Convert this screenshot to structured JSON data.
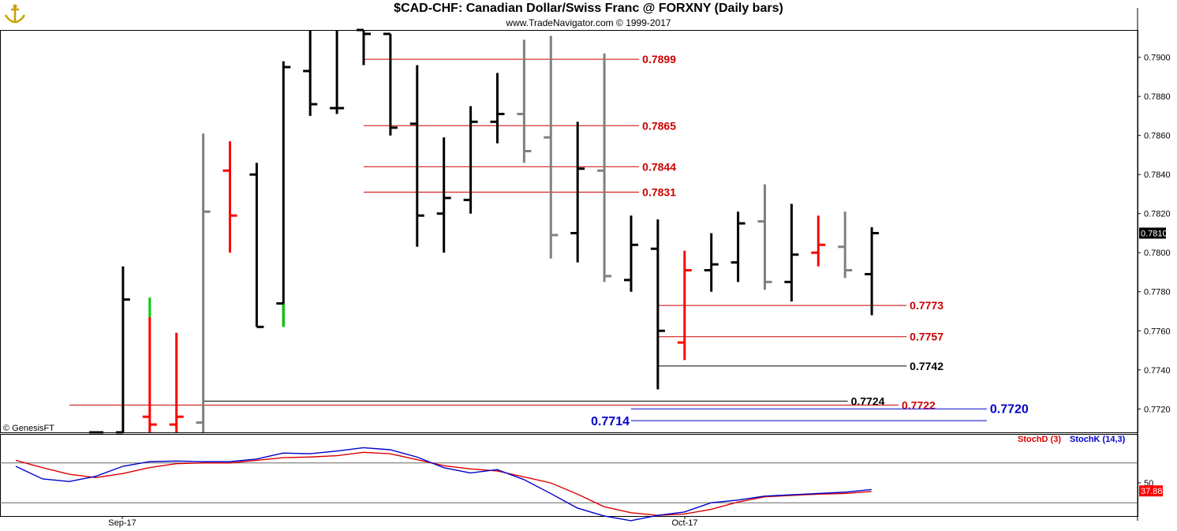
{
  "header": {
    "title": "$CAD-CHF:  Canadian Dollar/Swiss Franc @ FORXNY  (Daily bars)",
    "subtitle": "www.TradeNavigator.com © 1999-2017",
    "watermark": "© GenesisFT"
  },
  "colors": {
    "up_bar": "#000000",
    "down_bar": "#ff0000",
    "neutral_bar": "#808080",
    "green_bar": "#00cc00",
    "level_red": "#cc0000",
    "level_black": "#000000",
    "level_blue": "#0000cc",
    "stoch_d": "#dd0000",
    "stoch_k": "#0000cc"
  },
  "chart_data": [
    {
      "type": "ohlc",
      "ylim": [
        0.7708,
        0.7914
      ],
      "y_ticks": [
        "0.7720",
        "0.7740",
        "0.7760",
        "0.7780",
        "0.7800",
        "0.7820",
        "0.7840",
        "0.7860",
        "0.7880",
        "0.7900"
      ],
      "x_labels": [
        "Sep-17",
        "Oct-17"
      ],
      "last_price": "0.7810",
      "bars": [
        {
          "o": 0.7708,
          "h": 0.7708,
          "l": 0.7708,
          "c": 0.7708,
          "color": "black"
        },
        {
          "o": 0.7708,
          "h": 0.7793,
          "l": 0.7708,
          "c": 0.7776,
          "color": "black"
        },
        {
          "o": 0.7716,
          "h": 0.7767,
          "l": 0.7708,
          "c": 0.7712,
          "color": "red",
          "hi_green_top": 0.7777
        },
        {
          "o": 0.7712,
          "h": 0.7759,
          "l": 0.7708,
          "c": 0.7716,
          "color": "red"
        },
        {
          "o": 0.7713,
          "h": 0.7861,
          "l": 0.7708,
          "c": 0.7821,
          "color": "gray"
        },
        {
          "o": 0.7842,
          "h": 0.7857,
          "l": 0.78,
          "c": 0.7819,
          "color": "red"
        },
        {
          "o": 0.784,
          "h": 0.7846,
          "l": 0.7762,
          "c": 0.7762,
          "color": "black"
        },
        {
          "o": 0.7774,
          "h": 0.7898,
          "l": 0.7762,
          "c": 0.7895,
          "color": "black",
          "green_low": true
        },
        {
          "o": 0.7893,
          "h": 0.7914,
          "l": 0.787,
          "c": 0.7876,
          "color": "black"
        },
        {
          "o": 0.7874,
          "h": 0.7914,
          "l": 0.7871,
          "c": 0.7874,
          "color": "black"
        },
        {
          "o": 0.7914,
          "h": 0.7914,
          "l": 0.7896,
          "c": 0.7912,
          "color": "black"
        },
        {
          "o": 0.7912,
          "h": 0.7912,
          "l": 0.786,
          "c": 0.7864,
          "color": "black"
        },
        {
          "o": 0.7866,
          "h": 0.7896,
          "l": 0.7803,
          "c": 0.7819,
          "color": "black"
        },
        {
          "o": 0.782,
          "h": 0.7859,
          "l": 0.78,
          "c": 0.7828,
          "color": "black"
        },
        {
          "o": 0.7827,
          "h": 0.7875,
          "l": 0.782,
          "c": 0.7867,
          "color": "black"
        },
        {
          "o": 0.7867,
          "h": 0.7892,
          "l": 0.7856,
          "c": 0.7871,
          "color": "black"
        },
        {
          "o": 0.7871,
          "h": 0.7909,
          "l": 0.7846,
          "c": 0.7852,
          "color": "gray"
        },
        {
          "o": 0.7859,
          "h": 0.7911,
          "l": 0.7797,
          "c": 0.7809,
          "color": "gray"
        },
        {
          "o": 0.781,
          "h": 0.7867,
          "l": 0.7795,
          "c": 0.7843,
          "color": "black"
        },
        {
          "o": 0.7842,
          "h": 0.7902,
          "l": 0.7785,
          "c": 0.7788,
          "color": "gray"
        },
        {
          "o": 0.7786,
          "h": 0.7819,
          "l": 0.778,
          "c": 0.7804,
          "color": "black"
        },
        {
          "o": 0.7802,
          "h": 0.7817,
          "l": 0.773,
          "c": 0.776,
          "color": "black"
        },
        {
          "o": 0.7754,
          "h": 0.7801,
          "l": 0.7745,
          "c": 0.7791,
          "color": "red"
        },
        {
          "o": 0.7791,
          "h": 0.781,
          "l": 0.778,
          "c": 0.7794,
          "color": "black"
        },
        {
          "o": 0.7795,
          "h": 0.7821,
          "l": 0.7785,
          "c": 0.7815,
          "color": "black"
        },
        {
          "o": 0.7816,
          "h": 0.7835,
          "l": 0.7781,
          "c": 0.7785,
          "color": "gray"
        },
        {
          "o": 0.7785,
          "h": 0.7825,
          "l": 0.7775,
          "c": 0.7799,
          "color": "black"
        },
        {
          "o": 0.78,
          "h": 0.7819,
          "l": 0.7793,
          "c": 0.7804,
          "color": "red"
        },
        {
          "o": 0.7803,
          "h": 0.7821,
          "l": 0.7787,
          "c": 0.7791,
          "color": "gray"
        },
        {
          "o": 0.7789,
          "h": 0.7813,
          "l": 0.7768,
          "c": 0.781,
          "color": "black"
        }
      ],
      "levels": [
        {
          "value": 0.7899,
          "label": "0.7899",
          "color": "red",
          "from_bar": 10,
          "to_bar": 20.3,
          "label_side": "right"
        },
        {
          "value": 0.7865,
          "label": "0.7865",
          "color": "red",
          "from_bar": 10,
          "to_bar": 20.3,
          "label_side": "right"
        },
        {
          "value": 0.7844,
          "label": "0.7844",
          "color": "red",
          "from_bar": 10,
          "to_bar": 20.3,
          "label_side": "right"
        },
        {
          "value": 0.7831,
          "label": "0.7831",
          "color": "red",
          "from_bar": 10,
          "to_bar": 20.3,
          "label_side": "right"
        },
        {
          "value": 0.7773,
          "label": "0.7773",
          "color": "red",
          "from_bar": 21,
          "to_bar": 30.3,
          "label_side": "right"
        },
        {
          "value": 0.7757,
          "label": "0.7757",
          "color": "red",
          "from_bar": 21,
          "to_bar": 30.3,
          "label_side": "right"
        },
        {
          "value": 0.7742,
          "label": "0.7742",
          "color": "black",
          "from_bar": 21,
          "to_bar": 30.3,
          "label_side": "right"
        },
        {
          "value": 0.7724,
          "label": "0.7724",
          "color": "black",
          "from_bar": 4,
          "to_bar": 28.1,
          "label_side": "right"
        },
        {
          "value": 0.7722,
          "label": "0.7722",
          "color": "red",
          "from_bar": -1,
          "to_bar": 30,
          "label_side": "right"
        },
        {
          "value": 0.772,
          "label": "0.7720",
          "color": "blue",
          "from_bar": 20,
          "to_bar": 33.3,
          "label_side": "right",
          "big": true
        },
        {
          "value": 0.7714,
          "label": "0.7714",
          "color": "blue",
          "from_bar": 20,
          "to_bar": 33.3,
          "label_side": "left",
          "big": true
        }
      ]
    },
    {
      "type": "line",
      "name": "stochastic",
      "ylim": [
        0,
        100
      ],
      "y_ticks": [
        "50"
      ],
      "last_value": "37.88",
      "legend": [
        "StochD (3)",
        "StochK (14,3)"
      ],
      "series": [
        {
          "name": "StochD (3)",
          "values": [
            84,
            73,
            63,
            58,
            64,
            73,
            79,
            80,
            80,
            84,
            88,
            89,
            91,
            96,
            94,
            85,
            76,
            71,
            68,
            59,
            50,
            33,
            14,
            5,
            1,
            3,
            10,
            21,
            29,
            31,
            33,
            34,
            37
          ]
        },
        {
          "name": "StochK (14,3)",
          "values": [
            75,
            56,
            52,
            60,
            75,
            82,
            83,
            82,
            82,
            86,
            95,
            94,
            98,
            103,
            100,
            89,
            73,
            65,
            70,
            55,
            34,
            12,
            0,
            -7,
            1,
            6,
            20,
            24,
            30,
            32,
            34,
            36,
            40
          ]
        }
      ]
    }
  ]
}
